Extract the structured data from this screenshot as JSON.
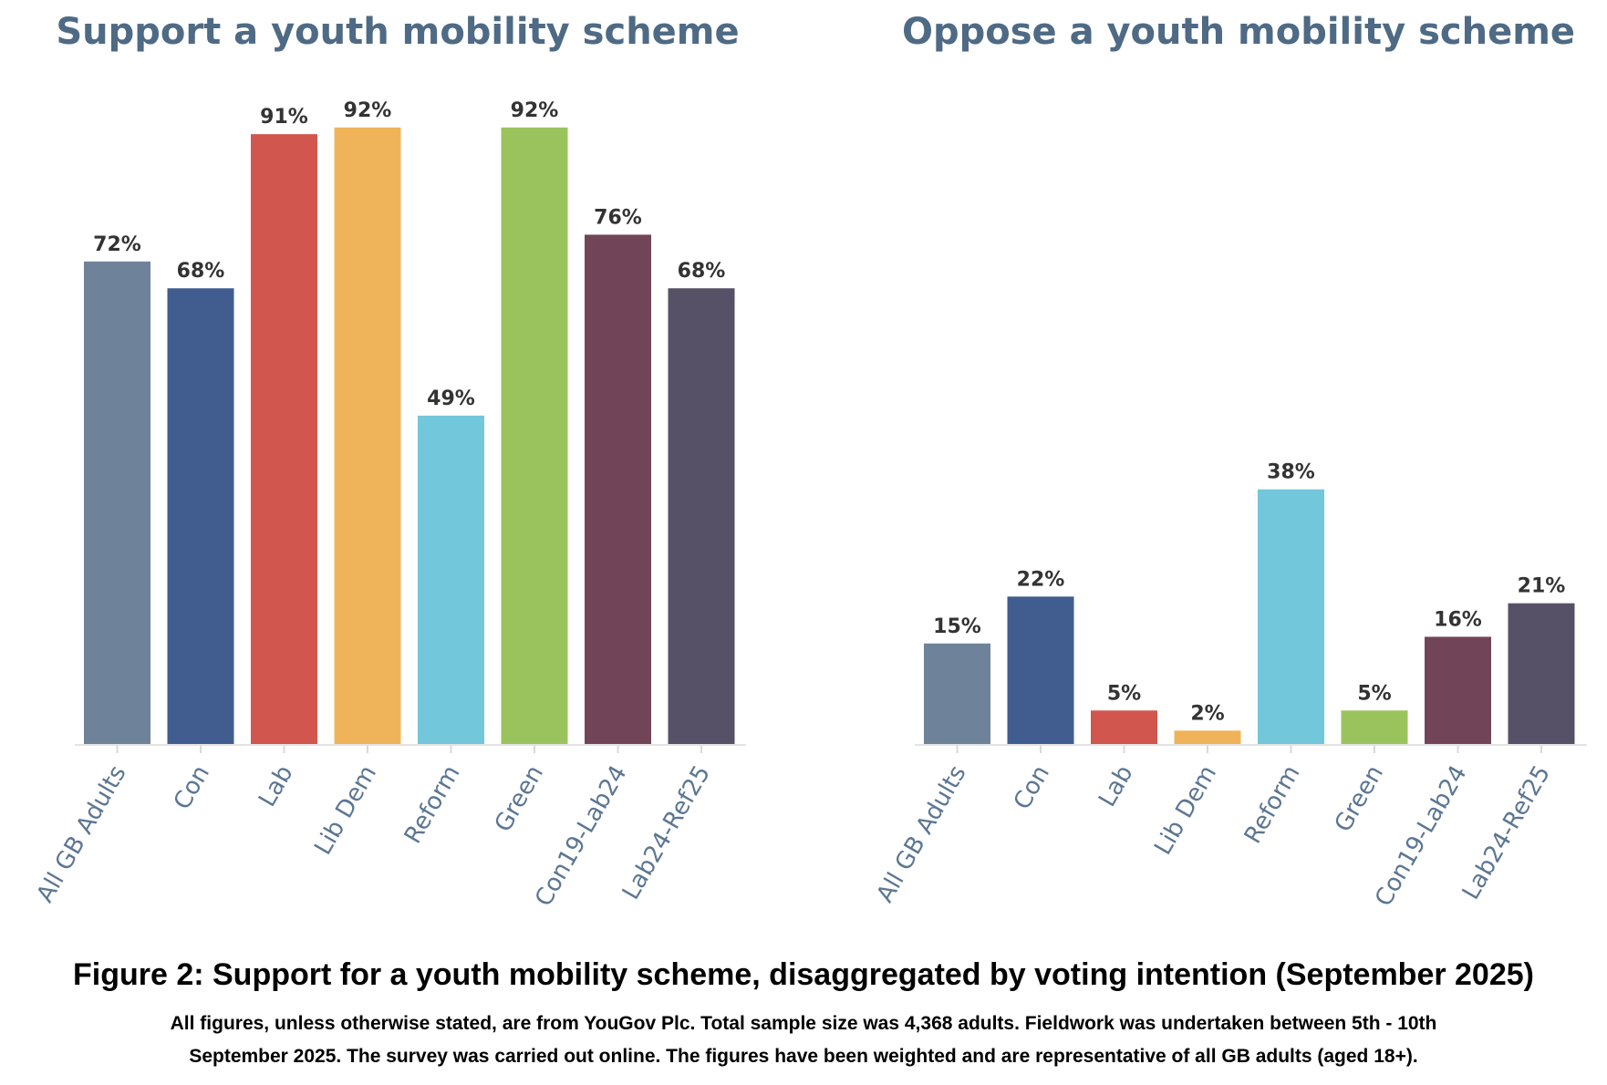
{
  "chart_data": [
    {
      "type": "bar",
      "title": "Support a youth mobility scheme",
      "xlabel": "",
      "ylabel": "",
      "ylim": [
        0,
        100
      ],
      "categories": [
        "All GB Adults",
        "Con",
        "Lab",
        "Lib Dem",
        "Reform",
        "Green",
        "Con19-Lab24",
        "Lab24-Ref25"
      ],
      "values": [
        72,
        68,
        91,
        92,
        49,
        92,
        76,
        68
      ],
      "value_labels": [
        "72%",
        "68%",
        "91%",
        "92%",
        "49%",
        "92%",
        "76%",
        "68%"
      ],
      "colors": [
        "#6e8399",
        "#415d8f",
        "#d1564e",
        "#efb45a",
        "#72c7db",
        "#9bc35d",
        "#724458",
        "#575167"
      ]
    },
    {
      "type": "bar",
      "title": "Oppose a youth mobility scheme",
      "xlabel": "",
      "ylabel": "",
      "ylim": [
        0,
        100
      ],
      "categories": [
        "All GB Adults",
        "Con",
        "Lab",
        "Lib Dem",
        "Reform",
        "Green",
        "Con19-Lab24",
        "Lab24-Ref25"
      ],
      "values": [
        15,
        22,
        5,
        2,
        38,
        5,
        16,
        21
      ],
      "value_labels": [
        "15%",
        "22%",
        "5%",
        "2%",
        "38%",
        "5%",
        "16%",
        "21%"
      ],
      "colors": [
        "#6e8399",
        "#415d8f",
        "#d1564e",
        "#efb45a",
        "#72c7db",
        "#9bc35d",
        "#724458",
        "#575167"
      ]
    }
  ],
  "figure": {
    "title": "Figure 2: Support for a youth mobility scheme, disaggregated by voting intention (September 2025)",
    "note_line1": "All figures, unless otherwise stated, are from YouGov Plc. Total sample size was 4,368 adults. Fieldwork was undertaken between 5th - 10th",
    "note_line2": "September 2025. The survey was carried out online. The figures have been weighted and are representative of all GB adults (aged 18+)."
  }
}
